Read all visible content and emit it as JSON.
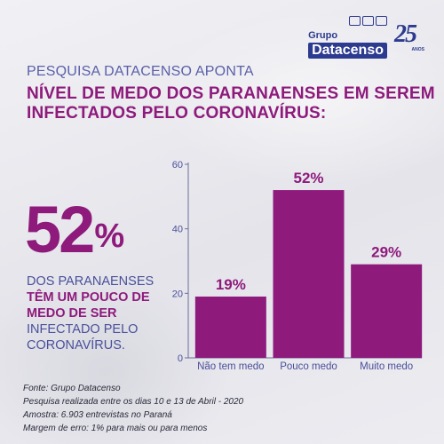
{
  "brand": {
    "group_label": "Grupo",
    "name": "Datacenso",
    "anniversary_number": "25",
    "anniversary_label": "ANOS"
  },
  "kicker": "PESQUISA DATACENSO APONTA",
  "headline": "NÍVEL DE MEDO DOS PARANAENSES EM SEREM INFECTADOS PELO CORONAVÍRUS:",
  "highlight": {
    "number": "52",
    "suffix": "%"
  },
  "description": {
    "line1": "DOS PARANAENSES",
    "strong": "TÊM UM POUCO DE MEDO DE SER",
    "rest": "INFECTADO PELO CORONAVÍRUS."
  },
  "chart_data": {
    "type": "bar",
    "categories": [
      "Não tem medo",
      "Pouco medo",
      "Muito medo"
    ],
    "values": [
      19,
      52,
      29
    ],
    "data_labels": [
      "19%",
      "52%",
      "29%"
    ],
    "title": "",
    "xlabel": "",
    "ylabel": "",
    "ylim": [
      0,
      60
    ],
    "yticks": [
      0,
      20,
      40,
      60
    ],
    "grid": false,
    "legend": "none",
    "bar_color": "#8e1a7c"
  },
  "footer": [
    "Fonte: Grupo Datacenso",
    "Pesquisa realizada entre os dias 10 e 13 de Abril - 2020",
    "Amostra: 6.903 entrevistas no Paraná",
    "Margem de erro: 1% para mais ou para menos"
  ],
  "colors": {
    "magenta": "#8e1a7c",
    "indigo": "#5a5fa8",
    "brand_blue": "#2c3a8f"
  }
}
